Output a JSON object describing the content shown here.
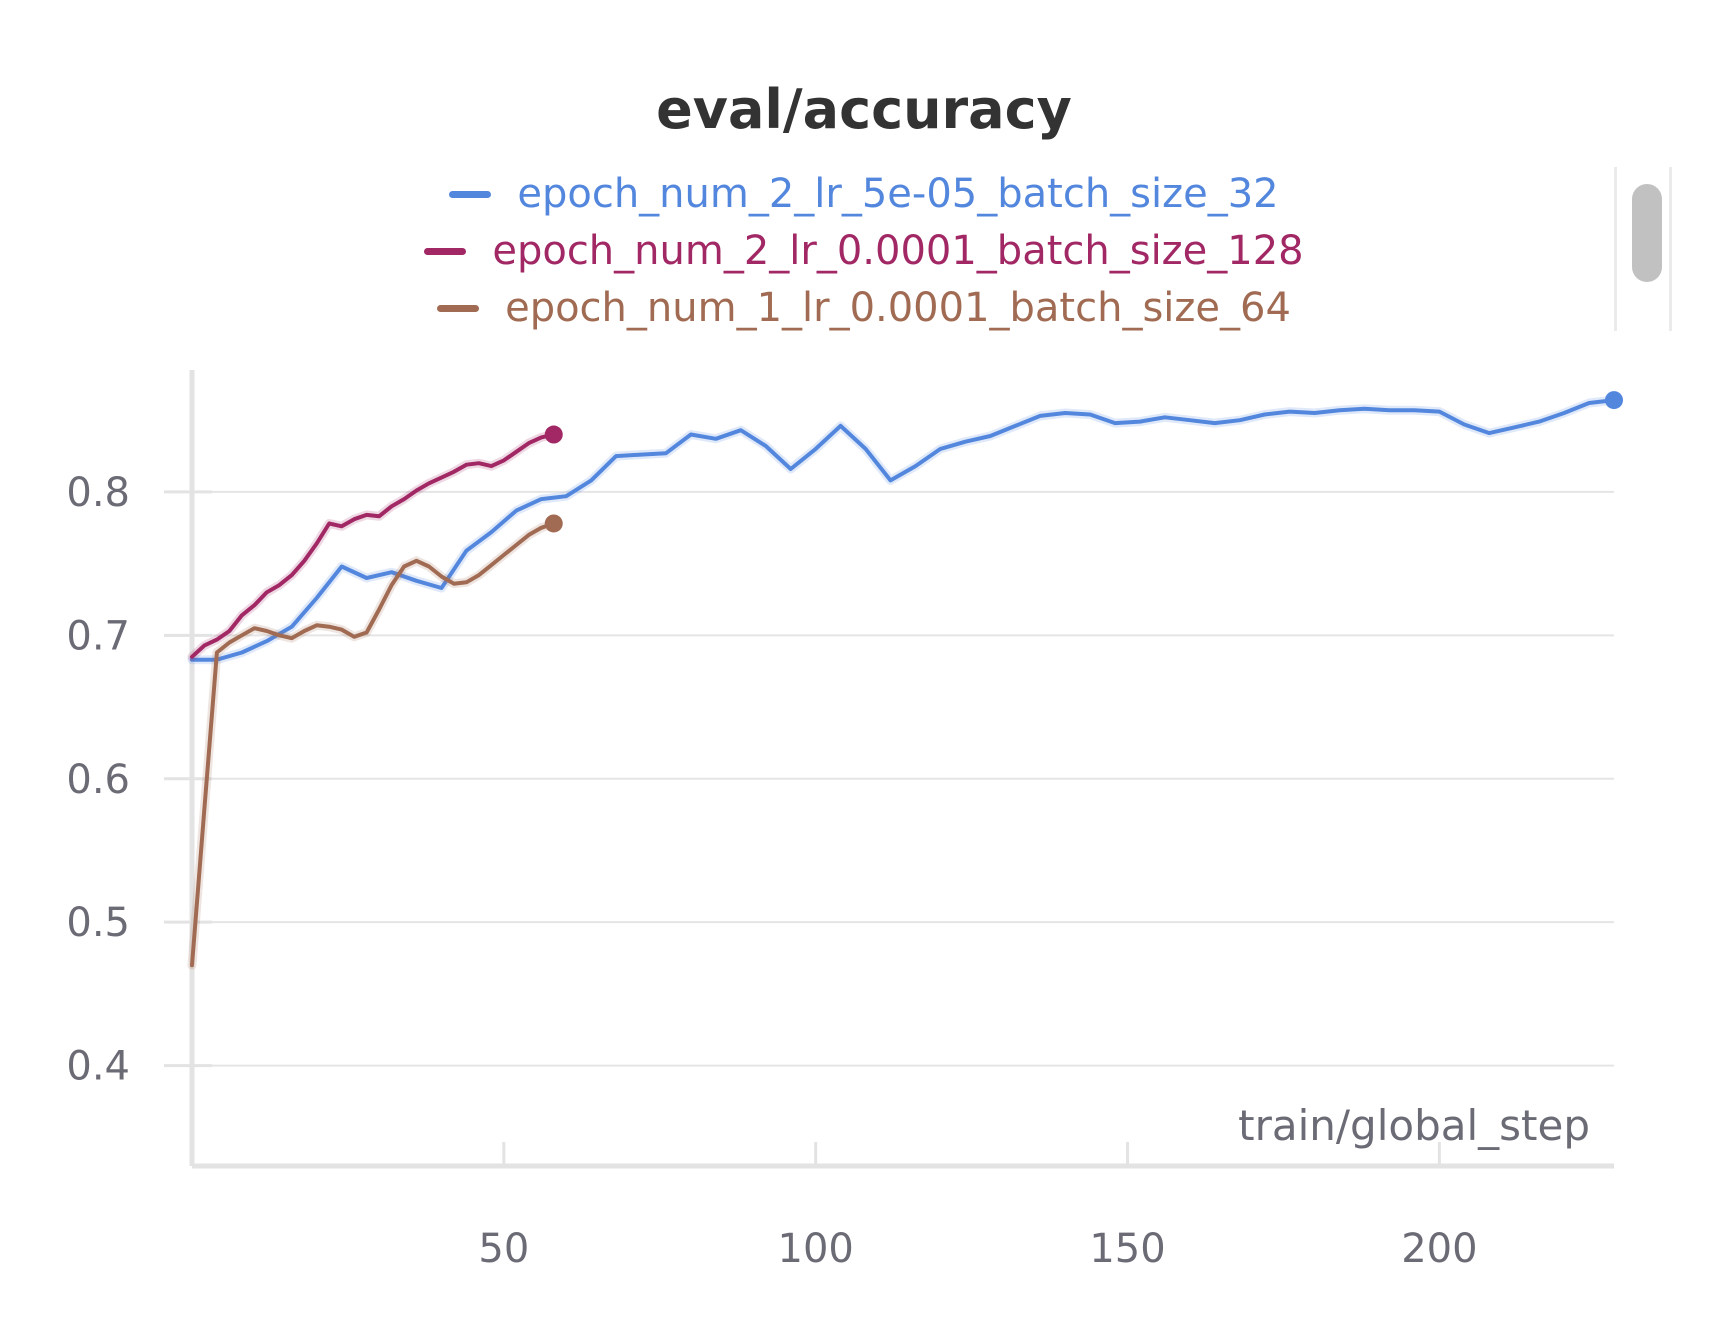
{
  "chart_data": {
    "type": "line",
    "title": "eval/accuracy",
    "xlabel": "train/global_step",
    "ylabel": "",
    "xlim": [
      0,
      228
    ],
    "ylim": [
      0.33,
      0.885
    ],
    "xticks": [
      50,
      100,
      150,
      200
    ],
    "yticks": [
      0.4,
      0.5,
      0.6,
      0.7,
      0.8
    ],
    "xtick_labels": [
      "50",
      "100",
      "150",
      "200"
    ],
    "ytick_labels": [
      "0.4",
      "0.5",
      "0.6",
      "0.7",
      "0.8"
    ],
    "grid": "horizontal",
    "legend_position": "top-center",
    "series": [
      {
        "name": "epoch_num_2_lr_5e-05_batch_size_32",
        "color": "#5387dd",
        "x": [
          0,
          4,
          8,
          12,
          16,
          20,
          24,
          28,
          32,
          36,
          40,
          44,
          48,
          52,
          56,
          60,
          64,
          68,
          72,
          76,
          80,
          84,
          88,
          92,
          96,
          100,
          104,
          108,
          112,
          116,
          120,
          124,
          128,
          132,
          136,
          140,
          144,
          148,
          152,
          156,
          160,
          164,
          168,
          172,
          176,
          180,
          184,
          188,
          192,
          196,
          200,
          204,
          208,
          212,
          216,
          220,
          224,
          228
        ],
        "y": [
          0.683,
          0.683,
          0.688,
          0.696,
          0.706,
          0.726,
          0.748,
          0.74,
          0.744,
          0.738,
          0.733,
          0.759,
          0.772,
          0.787,
          0.795,
          0.797,
          0.808,
          0.825,
          0.826,
          0.827,
          0.84,
          0.837,
          0.843,
          0.832,
          0.816,
          0.83,
          0.846,
          0.83,
          0.808,
          0.818,
          0.83,
          0.835,
          0.839,
          0.846,
          0.853,
          0.855,
          0.854,
          0.848,
          0.849,
          0.852,
          0.85,
          0.848,
          0.85,
          0.854,
          0.856,
          0.855,
          0.857,
          0.858,
          0.857,
          0.857,
          0.856,
          0.847,
          0.841,
          0.845,
          0.849,
          0.855,
          0.862,
          0.864
        ]
      },
      {
        "name": "epoch_num_2_lr_0.0001_batch_size_128",
        "color": "#a12864",
        "x": [
          0,
          2,
          4,
          6,
          8,
          10,
          12,
          14,
          16,
          18,
          20,
          22,
          24,
          26,
          28,
          30,
          32,
          34,
          36,
          38,
          40,
          42,
          44,
          46,
          48,
          50,
          52,
          54,
          56,
          58
        ],
        "y": [
          0.685,
          0.693,
          0.697,
          0.703,
          0.714,
          0.721,
          0.73,
          0.735,
          0.742,
          0.752,
          0.764,
          0.778,
          0.776,
          0.781,
          0.784,
          0.783,
          0.79,
          0.795,
          0.801,
          0.806,
          0.81,
          0.814,
          0.819,
          0.82,
          0.818,
          0.822,
          0.828,
          0.834,
          0.838,
          0.84
        ]
      },
      {
        "name": "epoch_num_1_lr_0.0001_batch_size_64",
        "color": "#a06b52",
        "x": [
          0,
          2,
          4,
          6,
          8,
          10,
          12,
          14,
          16,
          18,
          20,
          22,
          24,
          26,
          28,
          30,
          32,
          34,
          36,
          38,
          40,
          42,
          44,
          46,
          48,
          50,
          52,
          54,
          56,
          58
        ],
        "y": [
          0.47,
          0.58,
          0.688,
          0.695,
          0.7,
          0.705,
          0.703,
          0.7,
          0.698,
          0.703,
          0.707,
          0.706,
          0.704,
          0.699,
          0.702,
          0.718,
          0.735,
          0.748,
          0.752,
          0.748,
          0.741,
          0.736,
          0.737,
          0.742,
          0.749,
          0.756,
          0.763,
          0.77,
          0.775,
          0.778
        ]
      }
    ]
  }
}
